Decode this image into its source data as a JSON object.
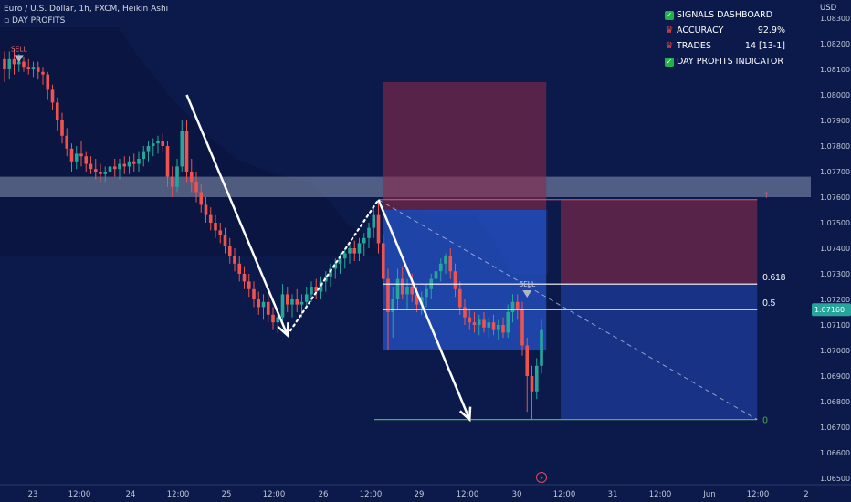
{
  "header": {
    "title": "Euro / U.S. Dollar, 1h, FXCM, Heikin Ashi",
    "indicator": "DAY PROFITS"
  },
  "dashboard": {
    "rows": [
      {
        "icon": "check-icon",
        "label": "SIGNALS DASHBOARD",
        "value": ""
      },
      {
        "icon": "trophy-icon",
        "label": "ACCURACY",
        "value": "92.9%"
      },
      {
        "icon": "trophy-icon",
        "label": "TRADES",
        "value": "14 [13-1]"
      },
      {
        "icon": "check-icon",
        "label": "DAY PROFITS INDICATOR",
        "value": ""
      }
    ]
  },
  "colors": {
    "background": "#0b1a4a",
    "bull": "#26a69a",
    "bear": "#ef5350",
    "price_tag": "#26a69a",
    "target_line": "#4caf50"
  },
  "chart_data": {
    "type": "candlestick",
    "currency": "USD",
    "ylim": [
      1.065,
      1.083
    ],
    "y_ticks": [
      "1.06500",
      "1.06600",
      "1.06700",
      "1.06800",
      "1.06900",
      "1.07000",
      "1.07100",
      "1.07200",
      "1.07300",
      "1.07400",
      "1.07500",
      "1.07600",
      "1.07700",
      "1.07800",
      "1.07900",
      "1.08000",
      "1.08100",
      "1.08200",
      "1.08300"
    ],
    "x_ticks": [
      "23",
      "12:00",
      "24",
      "12:00",
      "25",
      "12:00",
      "26",
      "12:00",
      "29",
      "12:00",
      "30",
      "12:00",
      "31",
      "12:00",
      "Jun",
      "12:00",
      "2"
    ],
    "last_price": "1.07160",
    "fib_levels": [
      {
        "label": "0.618",
        "price": 1.0726
      },
      {
        "label": "0.5",
        "price": 1.0716
      },
      {
        "label": "0",
        "price": 1.0673
      }
    ],
    "resistance_zone": [
      1.076,
      1.0768
    ],
    "signals": [
      {
        "label": "SELL",
        "time": 3,
        "price": 1.0812
      },
      {
        "label": "SELL",
        "time": 109,
        "price": 1.072
      }
    ],
    "trade_box_1": {
      "t0": 79,
      "t1": 113,
      "entry": 1.0755,
      "stop": 1.0805,
      "target": 1.07
    },
    "trade_box_2": {
      "t0": 116,
      "t1": 157,
      "stop": 1.0759,
      "entry": 1.0726,
      "target": 1.0673
    },
    "arrows": [
      {
        "t0": 38,
        "p0": 1.08,
        "t1": 59,
        "p1": 1.0706
      },
      {
        "t0": 78,
        "p0": 1.0759,
        "t1": 97,
        "p1": 1.0673
      }
    ],
    "dotted_path": {
      "t0": 59,
      "p0": 1.0706,
      "t1": 78,
      "p1": 1.0759
    },
    "dashed_trend": {
      "t0": 78,
      "p0": 1.0759,
      "t1": 157,
      "p1": 1.0673
    },
    "candles": [
      {
        "t": 0,
        "o": 1.0814,
        "h": 1.0817,
        "l": 1.0805,
        "c": 1.081
      },
      {
        "t": 1,
        "o": 1.081,
        "h": 1.0817,
        "l": 1.0806,
        "c": 1.0814
      },
      {
        "t": 2,
        "o": 1.0814,
        "h": 1.0818,
        "l": 1.0808,
        "c": 1.0812
      },
      {
        "t": 3,
        "o": 1.0812,
        "h": 1.0816,
        "l": 1.0809,
        "c": 1.0813
      },
      {
        "t": 4,
        "o": 1.0813,
        "h": 1.0815,
        "l": 1.0809,
        "c": 1.0811
      },
      {
        "t": 5,
        "o": 1.0811,
        "h": 1.0814,
        "l": 1.0808,
        "c": 1.081
      },
      {
        "t": 6,
        "o": 1.081,
        "h": 1.0813,
        "l": 1.0807,
        "c": 1.0811
      },
      {
        "t": 7,
        "o": 1.0811,
        "h": 1.0813,
        "l": 1.0806,
        "c": 1.0809
      },
      {
        "t": 8,
        "o": 1.0809,
        "h": 1.0811,
        "l": 1.0804,
        "c": 1.0808
      },
      {
        "t": 9,
        "o": 1.0808,
        "h": 1.0809,
        "l": 1.0798,
        "c": 1.0802
      },
      {
        "t": 10,
        "o": 1.0802,
        "h": 1.0804,
        "l": 1.0794,
        "c": 1.0797
      },
      {
        "t": 11,
        "o": 1.0797,
        "h": 1.0799,
        "l": 1.0786,
        "c": 1.079
      },
      {
        "t": 12,
        "o": 1.079,
        "h": 1.0793,
        "l": 1.0781,
        "c": 1.0784
      },
      {
        "t": 13,
        "o": 1.0784,
        "h": 1.0787,
        "l": 1.0776,
        "c": 1.0779
      },
      {
        "t": 14,
        "o": 1.0779,
        "h": 1.0781,
        "l": 1.077,
        "c": 1.0774
      },
      {
        "t": 15,
        "o": 1.0774,
        "h": 1.078,
        "l": 1.0771,
        "c": 1.0777
      },
      {
        "t": 16,
        "o": 1.0777,
        "h": 1.0782,
        "l": 1.0772,
        "c": 1.0776
      },
      {
        "t": 17,
        "o": 1.0776,
        "h": 1.0778,
        "l": 1.077,
        "c": 1.0773
      },
      {
        "t": 18,
        "o": 1.0773,
        "h": 1.0776,
        "l": 1.0769,
        "c": 1.0771
      },
      {
        "t": 19,
        "o": 1.0771,
        "h": 1.0775,
        "l": 1.0767,
        "c": 1.077
      },
      {
        "t": 20,
        "o": 1.077,
        "h": 1.0773,
        "l": 1.0766,
        "c": 1.0769
      },
      {
        "t": 21,
        "o": 1.0769,
        "h": 1.0772,
        "l": 1.0766,
        "c": 1.077
      },
      {
        "t": 22,
        "o": 1.077,
        "h": 1.0774,
        "l": 1.0767,
        "c": 1.0772
      },
      {
        "t": 23,
        "o": 1.0772,
        "h": 1.0775,
        "l": 1.0768,
        "c": 1.0771
      },
      {
        "t": 24,
        "o": 1.0771,
        "h": 1.0775,
        "l": 1.0767,
        "c": 1.0773
      },
      {
        "t": 25,
        "o": 1.0773,
        "h": 1.0776,
        "l": 1.0769,
        "c": 1.0772
      },
      {
        "t": 26,
        "o": 1.0772,
        "h": 1.0776,
        "l": 1.0769,
        "c": 1.0774
      },
      {
        "t": 27,
        "o": 1.0774,
        "h": 1.0777,
        "l": 1.077,
        "c": 1.0773
      },
      {
        "t": 28,
        "o": 1.0773,
        "h": 1.0778,
        "l": 1.077,
        "c": 1.0775
      },
      {
        "t": 29,
        "o": 1.0775,
        "h": 1.078,
        "l": 1.0772,
        "c": 1.0778
      },
      {
        "t": 30,
        "o": 1.0778,
        "h": 1.0782,
        "l": 1.0774,
        "c": 1.078
      },
      {
        "t": 31,
        "o": 1.078,
        "h": 1.0783,
        "l": 1.0776,
        "c": 1.0781
      },
      {
        "t": 32,
        "o": 1.0781,
        "h": 1.0784,
        "l": 1.0777,
        "c": 1.0782
      },
      {
        "t": 33,
        "o": 1.0782,
        "h": 1.0785,
        "l": 1.0778,
        "c": 1.078
      },
      {
        "t": 34,
        "o": 1.078,
        "h": 1.0782,
        "l": 1.0764,
        "c": 1.0768
      },
      {
        "t": 35,
        "o": 1.0768,
        "h": 1.0772,
        "l": 1.076,
        "c": 1.0764
      },
      {
        "t": 36,
        "o": 1.0764,
        "h": 1.0775,
        "l": 1.0762,
        "c": 1.0772
      },
      {
        "t": 37,
        "o": 1.0772,
        "h": 1.079,
        "l": 1.077,
        "c": 1.0786
      },
      {
        "t": 38,
        "o": 1.0786,
        "h": 1.079,
        "l": 1.0766,
        "c": 1.077
      },
      {
        "t": 39,
        "o": 1.077,
        "h": 1.0775,
        "l": 1.0762,
        "c": 1.0766
      },
      {
        "t": 40,
        "o": 1.0766,
        "h": 1.077,
        "l": 1.0758,
        "c": 1.0762
      },
      {
        "t": 41,
        "o": 1.0762,
        "h": 1.0765,
        "l": 1.0754,
        "c": 1.0757
      },
      {
        "t": 42,
        "o": 1.0757,
        "h": 1.076,
        "l": 1.075,
        "c": 1.0753
      },
      {
        "t": 43,
        "o": 1.0753,
        "h": 1.0756,
        "l": 1.0747,
        "c": 1.075
      },
      {
        "t": 44,
        "o": 1.075,
        "h": 1.0753,
        "l": 1.0744,
        "c": 1.0747
      },
      {
        "t": 45,
        "o": 1.0747,
        "h": 1.075,
        "l": 1.0742,
        "c": 1.0745
      },
      {
        "t": 46,
        "o": 1.0745,
        "h": 1.0748,
        "l": 1.0738,
        "c": 1.0741
      },
      {
        "t": 47,
        "o": 1.0741,
        "h": 1.0744,
        "l": 1.0734,
        "c": 1.0737
      },
      {
        "t": 48,
        "o": 1.0737,
        "h": 1.074,
        "l": 1.0731,
        "c": 1.0734
      },
      {
        "t": 49,
        "o": 1.0734,
        "h": 1.0737,
        "l": 1.0727,
        "c": 1.073
      },
      {
        "t": 50,
        "o": 1.073,
        "h": 1.0733,
        "l": 1.0724,
        "c": 1.0727
      },
      {
        "t": 51,
        "o": 1.0727,
        "h": 1.073,
        "l": 1.0721,
        "c": 1.0724
      },
      {
        "t": 52,
        "o": 1.0724,
        "h": 1.0727,
        "l": 1.0717,
        "c": 1.072
      },
      {
        "t": 53,
        "o": 1.072,
        "h": 1.0723,
        "l": 1.0714,
        "c": 1.0717
      },
      {
        "t": 54,
        "o": 1.0717,
        "h": 1.0722,
        "l": 1.0712,
        "c": 1.0719
      },
      {
        "t": 55,
        "o": 1.0719,
        "h": 1.0723,
        "l": 1.0711,
        "c": 1.0714
      },
      {
        "t": 56,
        "o": 1.0714,
        "h": 1.0717,
        "l": 1.0708,
        "c": 1.0711
      },
      {
        "t": 57,
        "o": 1.0711,
        "h": 1.0715,
        "l": 1.0707,
        "c": 1.0713
      },
      {
        "t": 58,
        "o": 1.0713,
        "h": 1.0726,
        "l": 1.071,
        "c": 1.0722
      },
      {
        "t": 59,
        "o": 1.0722,
        "h": 1.0725,
        "l": 1.0715,
        "c": 1.0718
      },
      {
        "t": 60,
        "o": 1.0718,
        "h": 1.0722,
        "l": 1.0713,
        "c": 1.072
      },
      {
        "t": 61,
        "o": 1.072,
        "h": 1.0724,
        "l": 1.0715,
        "c": 1.0718
      },
      {
        "t": 62,
        "o": 1.0718,
        "h": 1.0722,
        "l": 1.0713,
        "c": 1.0719
      },
      {
        "t": 63,
        "o": 1.0719,
        "h": 1.0725,
        "l": 1.0716,
        "c": 1.0722
      },
      {
        "t": 64,
        "o": 1.0722,
        "h": 1.0727,
        "l": 1.0719,
        "c": 1.0725
      },
      {
        "t": 65,
        "o": 1.0725,
        "h": 1.0728,
        "l": 1.072,
        "c": 1.0723
      },
      {
        "t": 66,
        "o": 1.0723,
        "h": 1.0729,
        "l": 1.072,
        "c": 1.0727
      },
      {
        "t": 67,
        "o": 1.0727,
        "h": 1.0731,
        "l": 1.0723,
        "c": 1.0729
      },
      {
        "t": 68,
        "o": 1.0729,
        "h": 1.0734,
        "l": 1.0725,
        "c": 1.0732
      },
      {
        "t": 69,
        "o": 1.0732,
        "h": 1.0736,
        "l": 1.0728,
        "c": 1.0734
      },
      {
        "t": 70,
        "o": 1.0734,
        "h": 1.0738,
        "l": 1.073,
        "c": 1.0736
      },
      {
        "t": 71,
        "o": 1.0736,
        "h": 1.074,
        "l": 1.0732,
        "c": 1.0738
      },
      {
        "t": 72,
        "o": 1.0738,
        "h": 1.0742,
        "l": 1.0734,
        "c": 1.074
      },
      {
        "t": 73,
        "o": 1.074,
        "h": 1.0743,
        "l": 1.0735,
        "c": 1.0738
      },
      {
        "t": 74,
        "o": 1.0738,
        "h": 1.0744,
        "l": 1.0735,
        "c": 1.0742
      },
      {
        "t": 75,
        "o": 1.0742,
        "h": 1.0746,
        "l": 1.0737,
        "c": 1.0744
      },
      {
        "t": 76,
        "o": 1.0744,
        "h": 1.075,
        "l": 1.074,
        "c": 1.0748
      },
      {
        "t": 77,
        "o": 1.0748,
        "h": 1.0756,
        "l": 1.0744,
        "c": 1.0753
      },
      {
        "t": 78,
        "o": 1.0753,
        "h": 1.0758,
        "l": 1.0738,
        "c": 1.0742
      },
      {
        "t": 79,
        "o": 1.0742,
        "h": 1.0745,
        "l": 1.0725,
        "c": 1.0728
      },
      {
        "t": 80,
        "o": 1.0728,
        "h": 1.0732,
        "l": 1.07,
        "c": 1.0715
      },
      {
        "t": 81,
        "o": 1.0715,
        "h": 1.0725,
        "l": 1.0705,
        "c": 1.072
      },
      {
        "t": 82,
        "o": 1.072,
        "h": 1.0732,
        "l": 1.0716,
        "c": 1.0728
      },
      {
        "t": 83,
        "o": 1.0728,
        "h": 1.0733,
        "l": 1.072,
        "c": 1.0722
      },
      {
        "t": 84,
        "o": 1.0722,
        "h": 1.0728,
        "l": 1.0716,
        "c": 1.0725
      },
      {
        "t": 85,
        "o": 1.0725,
        "h": 1.073,
        "l": 1.0719,
        "c": 1.0722
      },
      {
        "t": 86,
        "o": 1.0722,
        "h": 1.0725,
        "l": 1.0715,
        "c": 1.0718
      },
      {
        "t": 87,
        "o": 1.0718,
        "h": 1.0723,
        "l": 1.0714,
        "c": 1.0721
      },
      {
        "t": 88,
        "o": 1.0721,
        "h": 1.0726,
        "l": 1.0717,
        "c": 1.0724
      },
      {
        "t": 89,
        "o": 1.0724,
        "h": 1.073,
        "l": 1.072,
        "c": 1.0728
      },
      {
        "t": 90,
        "o": 1.0728,
        "h": 1.0733,
        "l": 1.0723,
        "c": 1.0731
      },
      {
        "t": 91,
        "o": 1.0731,
        "h": 1.0736,
        "l": 1.0727,
        "c": 1.0734
      },
      {
        "t": 92,
        "o": 1.0734,
        "h": 1.0738,
        "l": 1.073,
        "c": 1.0737
      },
      {
        "t": 93,
        "o": 1.0737,
        "h": 1.074,
        "l": 1.0728,
        "c": 1.0731
      },
      {
        "t": 94,
        "o": 1.0731,
        "h": 1.0734,
        "l": 1.0721,
        "c": 1.0724
      },
      {
        "t": 95,
        "o": 1.0724,
        "h": 1.0727,
        "l": 1.0714,
        "c": 1.0717
      },
      {
        "t": 96,
        "o": 1.0717,
        "h": 1.072,
        "l": 1.071,
        "c": 1.0713
      },
      {
        "t": 97,
        "o": 1.0713,
        "h": 1.0716,
        "l": 1.0708,
        "c": 1.0711
      },
      {
        "t": 98,
        "o": 1.0711,
        "h": 1.0715,
        "l": 1.0707,
        "c": 1.071
      },
      {
        "t": 99,
        "o": 1.071,
        "h": 1.0714,
        "l": 1.0706,
        "c": 1.0712
      },
      {
        "t": 100,
        "o": 1.0712,
        "h": 1.0715,
        "l": 1.0707,
        "c": 1.0709
      },
      {
        "t": 101,
        "o": 1.0709,
        "h": 1.0713,
        "l": 1.0705,
        "c": 1.0711
      },
      {
        "t": 102,
        "o": 1.0711,
        "h": 1.0714,
        "l": 1.0706,
        "c": 1.0708
      },
      {
        "t": 103,
        "o": 1.0708,
        "h": 1.0712,
        "l": 1.0704,
        "c": 1.071
      },
      {
        "t": 104,
        "o": 1.071,
        "h": 1.0713,
        "l": 1.0705,
        "c": 1.0707
      },
      {
        "t": 105,
        "o": 1.0707,
        "h": 1.0718,
        "l": 1.0705,
        "c": 1.0715
      },
      {
        "t": 106,
        "o": 1.0715,
        "h": 1.0722,
        "l": 1.0711,
        "c": 1.0719
      },
      {
        "t": 107,
        "o": 1.0719,
        "h": 1.0722,
        "l": 1.0712,
        "c": 1.0716
      },
      {
        "t": 108,
        "o": 1.0716,
        "h": 1.0719,
        "l": 1.0698,
        "c": 1.0702
      },
      {
        "t": 109,
        "o": 1.0702,
        "h": 1.0705,
        "l": 1.0676,
        "c": 1.069
      },
      {
        "t": 110,
        "o": 1.069,
        "h": 1.0694,
        "l": 1.0673,
        "c": 1.0684
      },
      {
        "t": 111,
        "o": 1.0684,
        "h": 1.0697,
        "l": 1.0681,
        "c": 1.0694
      },
      {
        "t": 112,
        "o": 1.0694,
        "h": 1.0712,
        "l": 1.0691,
        "c": 1.0708
      }
    ]
  }
}
